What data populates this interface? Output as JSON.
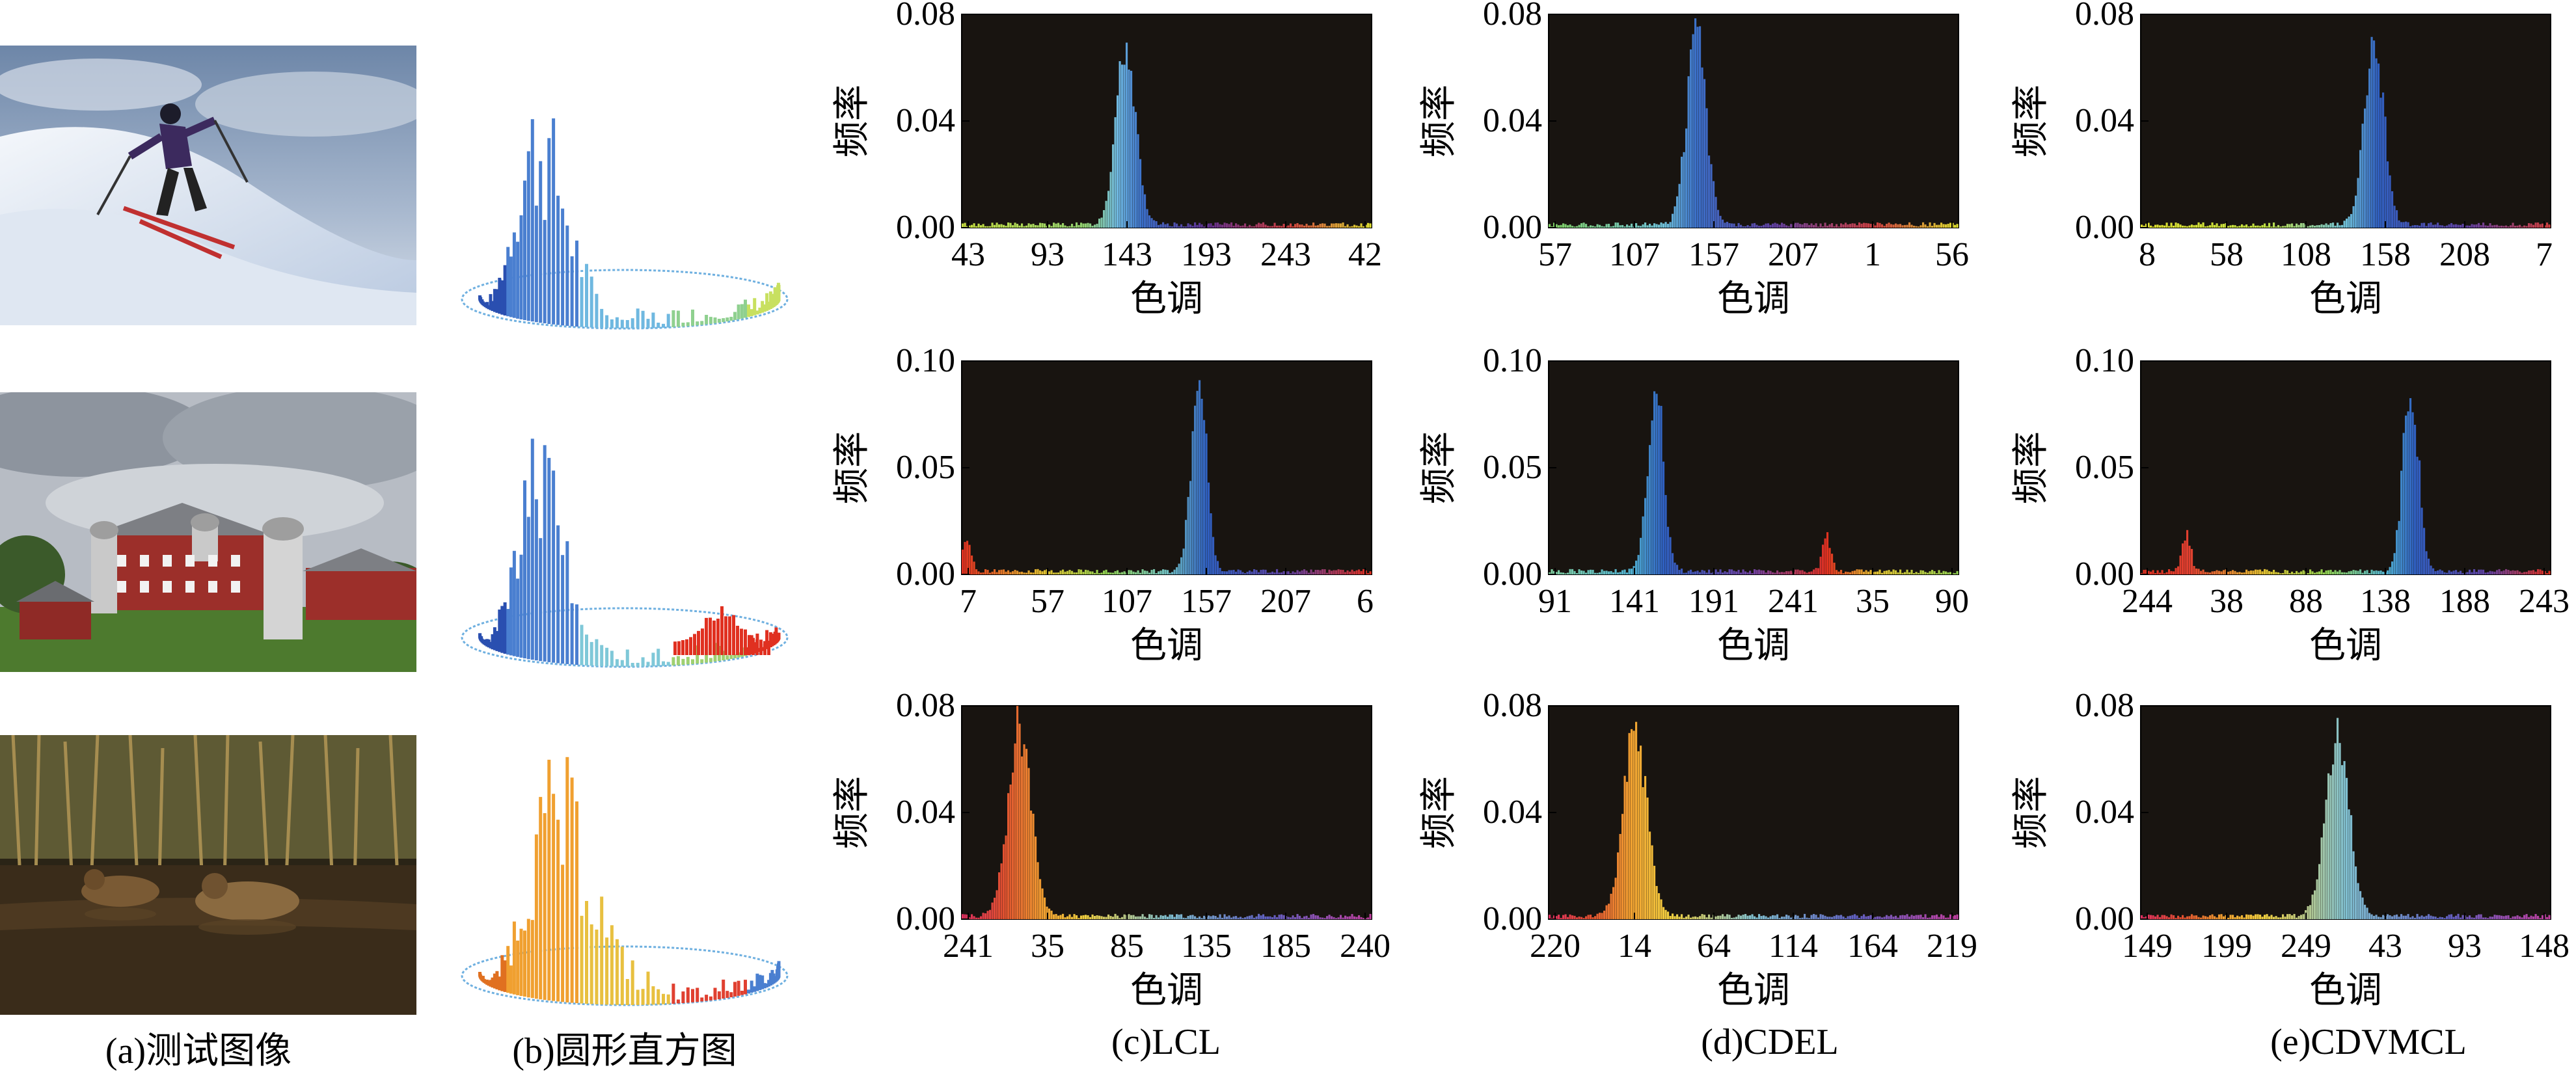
{
  "captions": [
    "(a)测试图像",
    "(b)圆形直方图",
    "(c)LCL",
    "(d)CDEL",
    "(e)CDVMCL"
  ],
  "ylabel": "频率",
  "xlabel": "色调",
  "images": [
    {
      "scene": "skier",
      "hist_colors": [
        "#2a4fb0",
        "#4a7fd0",
        "#6fb8e0",
        "#8fd08f",
        "#c8e060"
      ]
    },
    {
      "scene": "barn",
      "hist_colors": [
        "#2a4fb0",
        "#4a7fd0",
        "#7fc8d8",
        "#9fd070",
        "#e03020"
      ]
    },
    {
      "scene": "ducks",
      "hist_colors": [
        "#e07020",
        "#f0a030",
        "#e8c040",
        "#e04030",
        "#4a7fd0"
      ]
    }
  ],
  "chart_data": [
    {
      "type": "bar",
      "row": 0,
      "col": 0,
      "method": "LCL",
      "ylabel": "频率",
      "xlabel": "色调",
      "ylim": [
        0,
        0.08
      ],
      "yticks": [
        "0.00",
        "0.04",
        "0.08"
      ],
      "xticks": [
        "43",
        "93",
        "143",
        "193",
        "243",
        "42"
      ],
      "peak_position": 0.4,
      "peak_value": 0.08,
      "peak_width": 0.05,
      "color_scheme": "skier_lcl"
    },
    {
      "type": "bar",
      "row": 0,
      "col": 1,
      "method": "CDEL",
      "ylabel": "频率",
      "xlabel": "色调",
      "ylim": [
        0,
        0.08
      ],
      "yticks": [
        "0.00",
        "0.04",
        "0.08"
      ],
      "xticks": [
        "57",
        "107",
        "157",
        "207",
        "1",
        "56"
      ],
      "peak_position": 0.36,
      "peak_value": 0.08,
      "peak_width": 0.05,
      "color_scheme": "skier_cdel"
    },
    {
      "type": "bar",
      "row": 0,
      "col": 2,
      "method": "CDVMCL",
      "ylabel": "频率",
      "xlabel": "色调",
      "ylim": [
        0,
        0.08
      ],
      "yticks": [
        "0.00",
        "0.04",
        "0.08"
      ],
      "xticks": [
        "8",
        "58",
        "108",
        "158",
        "208",
        "7"
      ],
      "peak_position": 0.57,
      "peak_value": 0.08,
      "peak_width": 0.05,
      "color_scheme": "skier_cdvmcl"
    },
    {
      "type": "bar",
      "row": 1,
      "col": 0,
      "method": "LCL",
      "ylabel": "频率",
      "xlabel": "色调",
      "ylim": [
        0,
        0.1
      ],
      "yticks": [
        "0.00",
        "0.05",
        "0.10"
      ],
      "xticks": [
        "7",
        "57",
        "107",
        "157",
        "207",
        "6"
      ],
      "peak_position": 0.58,
      "peak_value": 0.1,
      "peak_width": 0.04,
      "secondary_peak_position": 0.01,
      "secondary_peak_value": 0.02,
      "color_scheme": "barn_lcl"
    },
    {
      "type": "bar",
      "row": 1,
      "col": 1,
      "method": "CDEL",
      "ylabel": "频率",
      "xlabel": "色调",
      "ylim": [
        0,
        0.1
      ],
      "yticks": [
        "0.00",
        "0.05",
        "0.10"
      ],
      "xticks": [
        "91",
        "141",
        "191",
        "241",
        "35",
        "90"
      ],
      "peak_position": 0.26,
      "peak_value": 0.1,
      "peak_width": 0.04,
      "secondary_peak_position": 0.68,
      "secondary_peak_value": 0.02,
      "color_scheme": "barn_cdel"
    },
    {
      "type": "bar",
      "row": 1,
      "col": 2,
      "method": "CDVMCL",
      "ylabel": "频率",
      "xlabel": "色调",
      "ylim": [
        0,
        0.1
      ],
      "yticks": [
        "0.00",
        "0.05",
        "0.10"
      ],
      "xticks": [
        "244",
        "38",
        "88",
        "138",
        "188",
        "243"
      ],
      "peak_position": 0.66,
      "peak_value": 0.1,
      "peak_width": 0.04,
      "secondary_peak_position": 0.11,
      "secondary_peak_value": 0.02,
      "color_scheme": "barn_cdvmcl"
    },
    {
      "type": "bar",
      "row": 2,
      "col": 0,
      "method": "LCL",
      "ylabel": "频率",
      "xlabel": "色调",
      "ylim": [
        0,
        0.08
      ],
      "yticks": [
        "0.00",
        "0.04",
        "0.08"
      ],
      "xticks": [
        "241",
        "35",
        "85",
        "135",
        "185",
        "240"
      ],
      "peak_position": 0.14,
      "peak_value": 0.08,
      "peak_width": 0.06,
      "color_scheme": "ducks"
    },
    {
      "type": "bar",
      "row": 2,
      "col": 1,
      "method": "CDEL",
      "ylabel": "频率",
      "xlabel": "色调",
      "ylim": [
        0,
        0.08
      ],
      "yticks": [
        "0.00",
        "0.04",
        "0.08"
      ],
      "xticks": [
        "220",
        "14",
        "64",
        "114",
        "164",
        "219"
      ],
      "peak_position": 0.21,
      "peak_value": 0.08,
      "peak_width": 0.06,
      "color_scheme": "ducks"
    },
    {
      "type": "bar",
      "row": 2,
      "col": 2,
      "method": "CDVMCL",
      "ylabel": "频率",
      "xlabel": "色调",
      "ylim": [
        0,
        0.08
      ],
      "yticks": [
        "0.00",
        "0.04",
        "0.08"
      ],
      "xticks": [
        "149",
        "199",
        "249",
        "43",
        "93",
        "148"
      ],
      "peak_position": 0.48,
      "peak_value": 0.08,
      "peak_width": 0.06,
      "color_scheme": "ducks"
    }
  ]
}
